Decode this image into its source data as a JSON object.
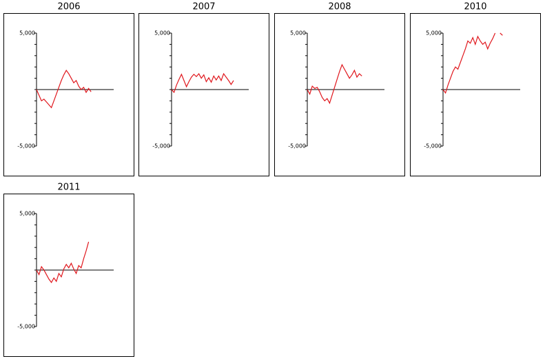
{
  "chart_data": [
    {
      "type": "line",
      "title": "2006",
      "color": "#e0161c",
      "ylim": [
        -5000,
        5000
      ],
      "yticks": [
        {
          "value": -5000,
          "label": "-5,000"
        },
        {
          "value": 5000,
          "label": "5,000"
        }
      ],
      "yminorticks": [
        -4000,
        -3000,
        -2000,
        -1000,
        0,
        1000,
        2000,
        3000,
        4000
      ],
      "zero_line": true,
      "values": [
        0,
        -500,
        -1000,
        -850,
        -1100,
        -1350,
        -1600,
        -1000,
        -400,
        200,
        800,
        1300,
        1700,
        1400,
        1000,
        600,
        800,
        300,
        0,
        200,
        -250,
        100,
        -200
      ]
    },
    {
      "type": "line",
      "title": "2007",
      "color": "#e0161c",
      "ylim": [
        -5000,
        5000
      ],
      "yticks": [
        {
          "value": -5000,
          "label": "-5,000"
        },
        {
          "value": 5000,
          "label": "5,000"
        }
      ],
      "yminorticks": [
        -4000,
        -3000,
        -2000,
        -1000,
        0,
        1000,
        2000,
        3000,
        4000
      ],
      "zero_line": true,
      "values": [
        0,
        -250,
        400,
        900,
        1350,
        800,
        250,
        700,
        1100,
        1350,
        1150,
        1400,
        1000,
        1300,
        700,
        1050,
        650,
        1200,
        850,
        1200,
        800,
        1400,
        1100,
        800,
        450,
        800
      ]
    },
    {
      "type": "line",
      "title": "2008",
      "color": "#e0161c",
      "ylim": [
        -5000,
        5000
      ],
      "yticks": [
        {
          "value": -5000,
          "label": "-5,000"
        },
        {
          "value": 5000,
          "label": "5,000"
        }
      ],
      "yminorticks": [
        -4000,
        -3000,
        -2000,
        -1000,
        0,
        1000,
        2000,
        3000,
        4000
      ],
      "zero_line": true,
      "values": [
        0,
        -400,
        300,
        100,
        200,
        -200,
        -700,
        -1000,
        -800,
        -1200,
        -500,
        200,
        900,
        1600,
        2200,
        1800,
        1400,
        1000,
        1300,
        1700,
        1100,
        1400,
        1200
      ]
    },
    {
      "type": "line",
      "title": "2010",
      "color": "#e0161c",
      "ylim": [
        -5000,
        5000
      ],
      "yticks": [
        {
          "value": -5000,
          "label": "-5,000"
        },
        {
          "value": 5000,
          "label": "5,000"
        }
      ],
      "yminorticks": [
        -4000,
        -3000,
        -2000,
        -1000,
        0,
        1000,
        2000,
        3000,
        4000
      ],
      "zero_line": true,
      "values": [
        0,
        -300,
        400,
        1000,
        1600,
        2000,
        1800,
        2400,
        3000,
        3600,
        4300,
        4100,
        4600,
        4000,
        4700,
        4300,
        4000,
        4200,
        3600,
        4100,
        4500,
        5000,
        null,
        5000,
        4800
      ]
    },
    {
      "type": "line",
      "title": "2011",
      "color": "#e0161c",
      "ylim": [
        -5000,
        5000
      ],
      "yticks": [
        {
          "value": -5000,
          "label": "-5,000"
        },
        {
          "value": 5000,
          "label": "5,000"
        }
      ],
      "yminorticks": [
        -4000,
        -3000,
        -2000,
        -1000,
        0,
        1000,
        2000,
        3000,
        4000
      ],
      "zero_line": true,
      "values": [
        0,
        -400,
        300,
        0,
        -400,
        -800,
        -1100,
        -700,
        -1000,
        -300,
        -600,
        100,
        500,
        200,
        600,
        100,
        -300,
        400,
        200,
        1000,
        1700,
        2500
      ]
    }
  ]
}
